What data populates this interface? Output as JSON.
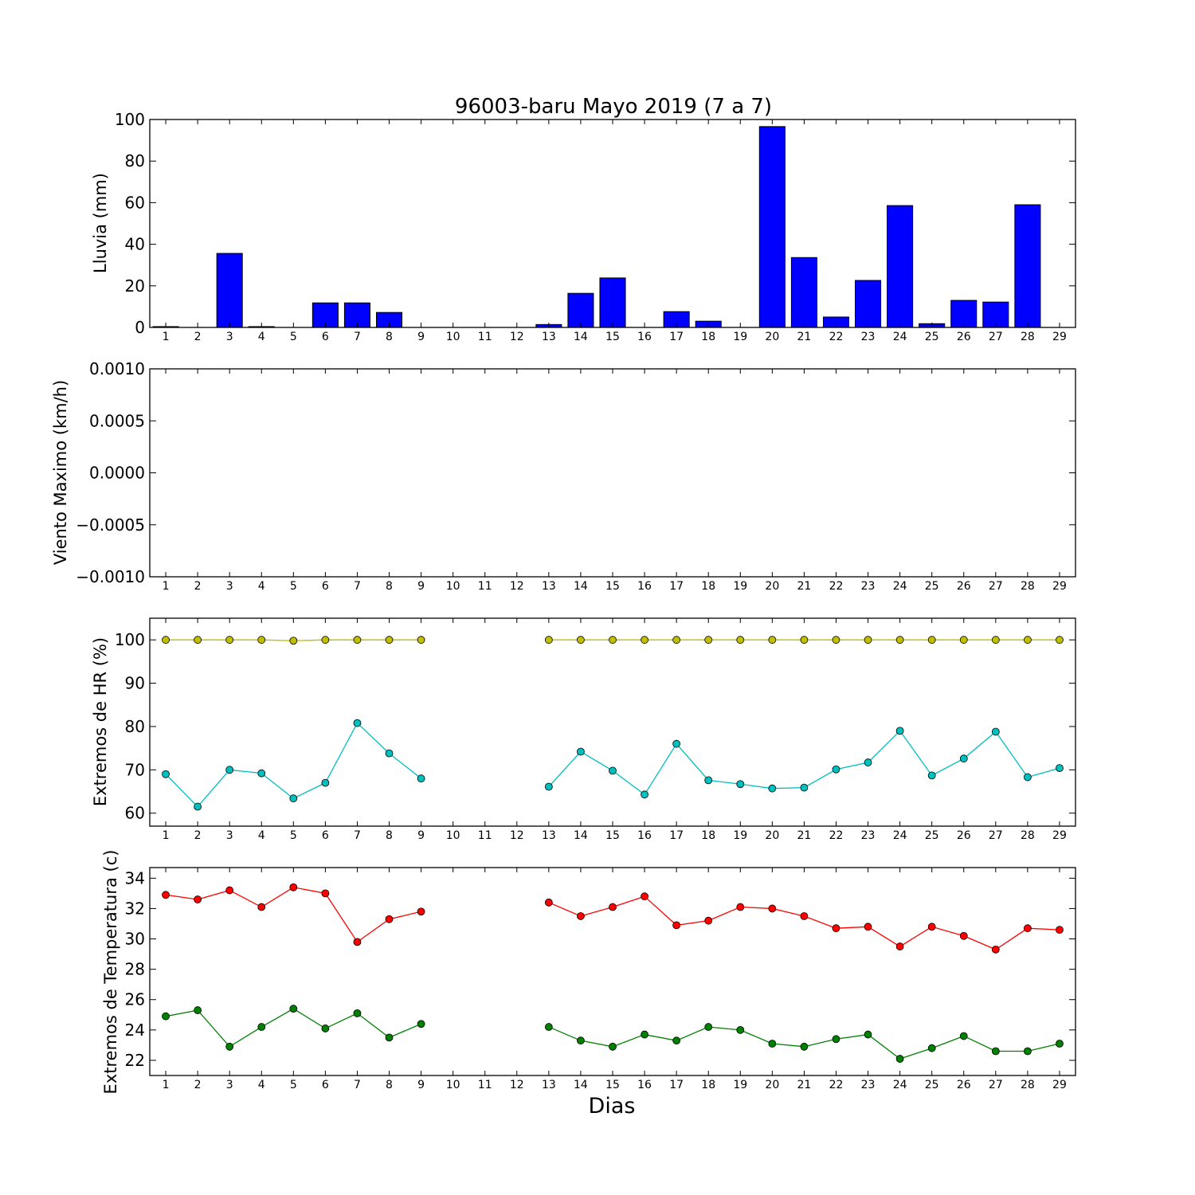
{
  "chart_data": [
    {
      "type": "bar",
      "title": "96003-baru Mayo 2019  (7 a 7)",
      "ylabel": "Lluvia (mm)",
      "xlabel": "",
      "x": [
        1,
        2,
        3,
        4,
        5,
        6,
        7,
        8,
        9,
        10,
        11,
        12,
        13,
        14,
        15,
        16,
        17,
        18,
        19,
        20,
        21,
        22,
        23,
        24,
        25,
        26,
        27,
        28,
        29
      ],
      "xtick_labels": [
        "1",
        "2",
        "3",
        "4",
        "5",
        "6",
        "7",
        "8",
        "9",
        "10",
        "11",
        "12",
        "13",
        "14",
        "15",
        "16",
        "17",
        "18",
        "19",
        "20",
        "21",
        "22",
        "23",
        "24",
        "25",
        "26",
        "27",
        "28",
        "29"
      ],
      "ylim": [
        0,
        100
      ],
      "yticks": [
        "0",
        "20",
        "40",
        "60",
        "80",
        "100"
      ],
      "color": "#0000ff",
      "values": [
        0.4,
        0,
        35.6,
        0.4,
        0,
        11.8,
        11.8,
        7.2,
        0,
        0,
        0,
        0,
        1.4,
        16.4,
        23.8,
        0,
        7.6,
        3.0,
        0,
        96.6,
        33.6,
        5.0,
        22.6,
        58.6,
        1.8,
        13.0,
        12.2,
        59.0,
        0
      ]
    },
    {
      "type": "line",
      "ylabel": "Viento Maximo (km/h)",
      "xlabel": "",
      "x": [
        1,
        2,
        3,
        4,
        5,
        6,
        7,
        8,
        9,
        10,
        11,
        12,
        13,
        14,
        15,
        16,
        17,
        18,
        19,
        20,
        21,
        22,
        23,
        24,
        25,
        26,
        27,
        28,
        29
      ],
      "xtick_labels": [
        "1",
        "2",
        "3",
        "4",
        "5",
        "6",
        "7",
        "8",
        "9",
        "10",
        "11",
        "12",
        "13",
        "14",
        "15",
        "16",
        "17",
        "18",
        "19",
        "20",
        "21",
        "22",
        "23",
        "24",
        "25",
        "26",
        "27",
        "28",
        "29"
      ],
      "ylim": [
        -0.001,
        0.001
      ],
      "yticks": [
        "0.0010",
        "0.0005",
        "0.0000",
        "−0.0005",
        "−0.0010"
      ],
      "series": []
    },
    {
      "type": "line",
      "ylabel": "Extremos de HR (%)",
      "xlabel": "",
      "x": [
        1,
        2,
        3,
        4,
        5,
        6,
        7,
        8,
        9,
        10,
        11,
        12,
        13,
        14,
        15,
        16,
        17,
        18,
        19,
        20,
        21,
        22,
        23,
        24,
        25,
        26,
        27,
        28,
        29
      ],
      "xtick_labels": [
        "1",
        "2",
        "3",
        "4",
        "5",
        "6",
        "7",
        "8",
        "9",
        "10",
        "11",
        "12",
        "13",
        "14",
        "15",
        "16",
        "17",
        "18",
        "19",
        "20",
        "21",
        "22",
        "23",
        "24",
        "25",
        "26",
        "27",
        "28",
        "29"
      ],
      "ylim": [
        57,
        105
      ],
      "yticks": [
        "60",
        "70",
        "80",
        "90",
        "100"
      ],
      "series": [
        {
          "color": "#bfbf00",
          "values": [
            100,
            100,
            100,
            100,
            99.8,
            100,
            100,
            100,
            100,
            null,
            null,
            null,
            100,
            100,
            100,
            100,
            100,
            100,
            100,
            100,
            100,
            100,
            100,
            100,
            100,
            100,
            100,
            100,
            100
          ]
        },
        {
          "color": "#00bfbf",
          "values": [
            69,
            61.5,
            70,
            69.2,
            63.4,
            67,
            80.8,
            73.8,
            68,
            null,
            null,
            null,
            66.1,
            74.2,
            69.8,
            64.3,
            76,
            67.6,
            66.7,
            65.7,
            65.9,
            70.1,
            71.7,
            79,
            68.7,
            72.6,
            78.8,
            68.3,
            70.4
          ]
        }
      ]
    },
    {
      "type": "line",
      "ylabel": "Extremos de Temperatura (c)",
      "xlabel": "Dias",
      "x": [
        1,
        2,
        3,
        4,
        5,
        6,
        7,
        8,
        9,
        10,
        11,
        12,
        13,
        14,
        15,
        16,
        17,
        18,
        19,
        20,
        21,
        22,
        23,
        24,
        25,
        26,
        27,
        28,
        29
      ],
      "xtick_labels": [
        "1",
        "2",
        "3",
        "4",
        "5",
        "6",
        "7",
        "8",
        "9",
        "10",
        "11",
        "12",
        "13",
        "14",
        "15",
        "16",
        "17",
        "18",
        "19",
        "20",
        "21",
        "22",
        "23",
        "24",
        "25",
        "26",
        "27",
        "28",
        "29"
      ],
      "ylim": [
        21,
        34.7
      ],
      "yticks": [
        "22",
        "24",
        "26",
        "28",
        "30",
        "32",
        "34"
      ],
      "series": [
        {
          "color": "#ff0000",
          "values": [
            32.9,
            32.6,
            33.2,
            32.1,
            33.4,
            33,
            29.8,
            31.3,
            31.8,
            null,
            null,
            null,
            32.4,
            31.5,
            32.1,
            32.8,
            30.9,
            31.2,
            32.1,
            32,
            31.5,
            30.7,
            30.8,
            29.5,
            30.8,
            30.2,
            29.3,
            30.7,
            30.6
          ]
        },
        {
          "color": "#008000",
          "values": [
            24.9,
            25.3,
            22.9,
            24.2,
            25.4,
            24.1,
            25.1,
            23.5,
            24.4,
            null,
            null,
            null,
            24.2,
            23.3,
            22.9,
            23.7,
            23.3,
            24.2,
            24,
            23.1,
            22.9,
            23.4,
            23.7,
            22.1,
            22.8,
            23.6,
            22.6,
            22.6,
            23.1
          ]
        }
      ]
    }
  ]
}
